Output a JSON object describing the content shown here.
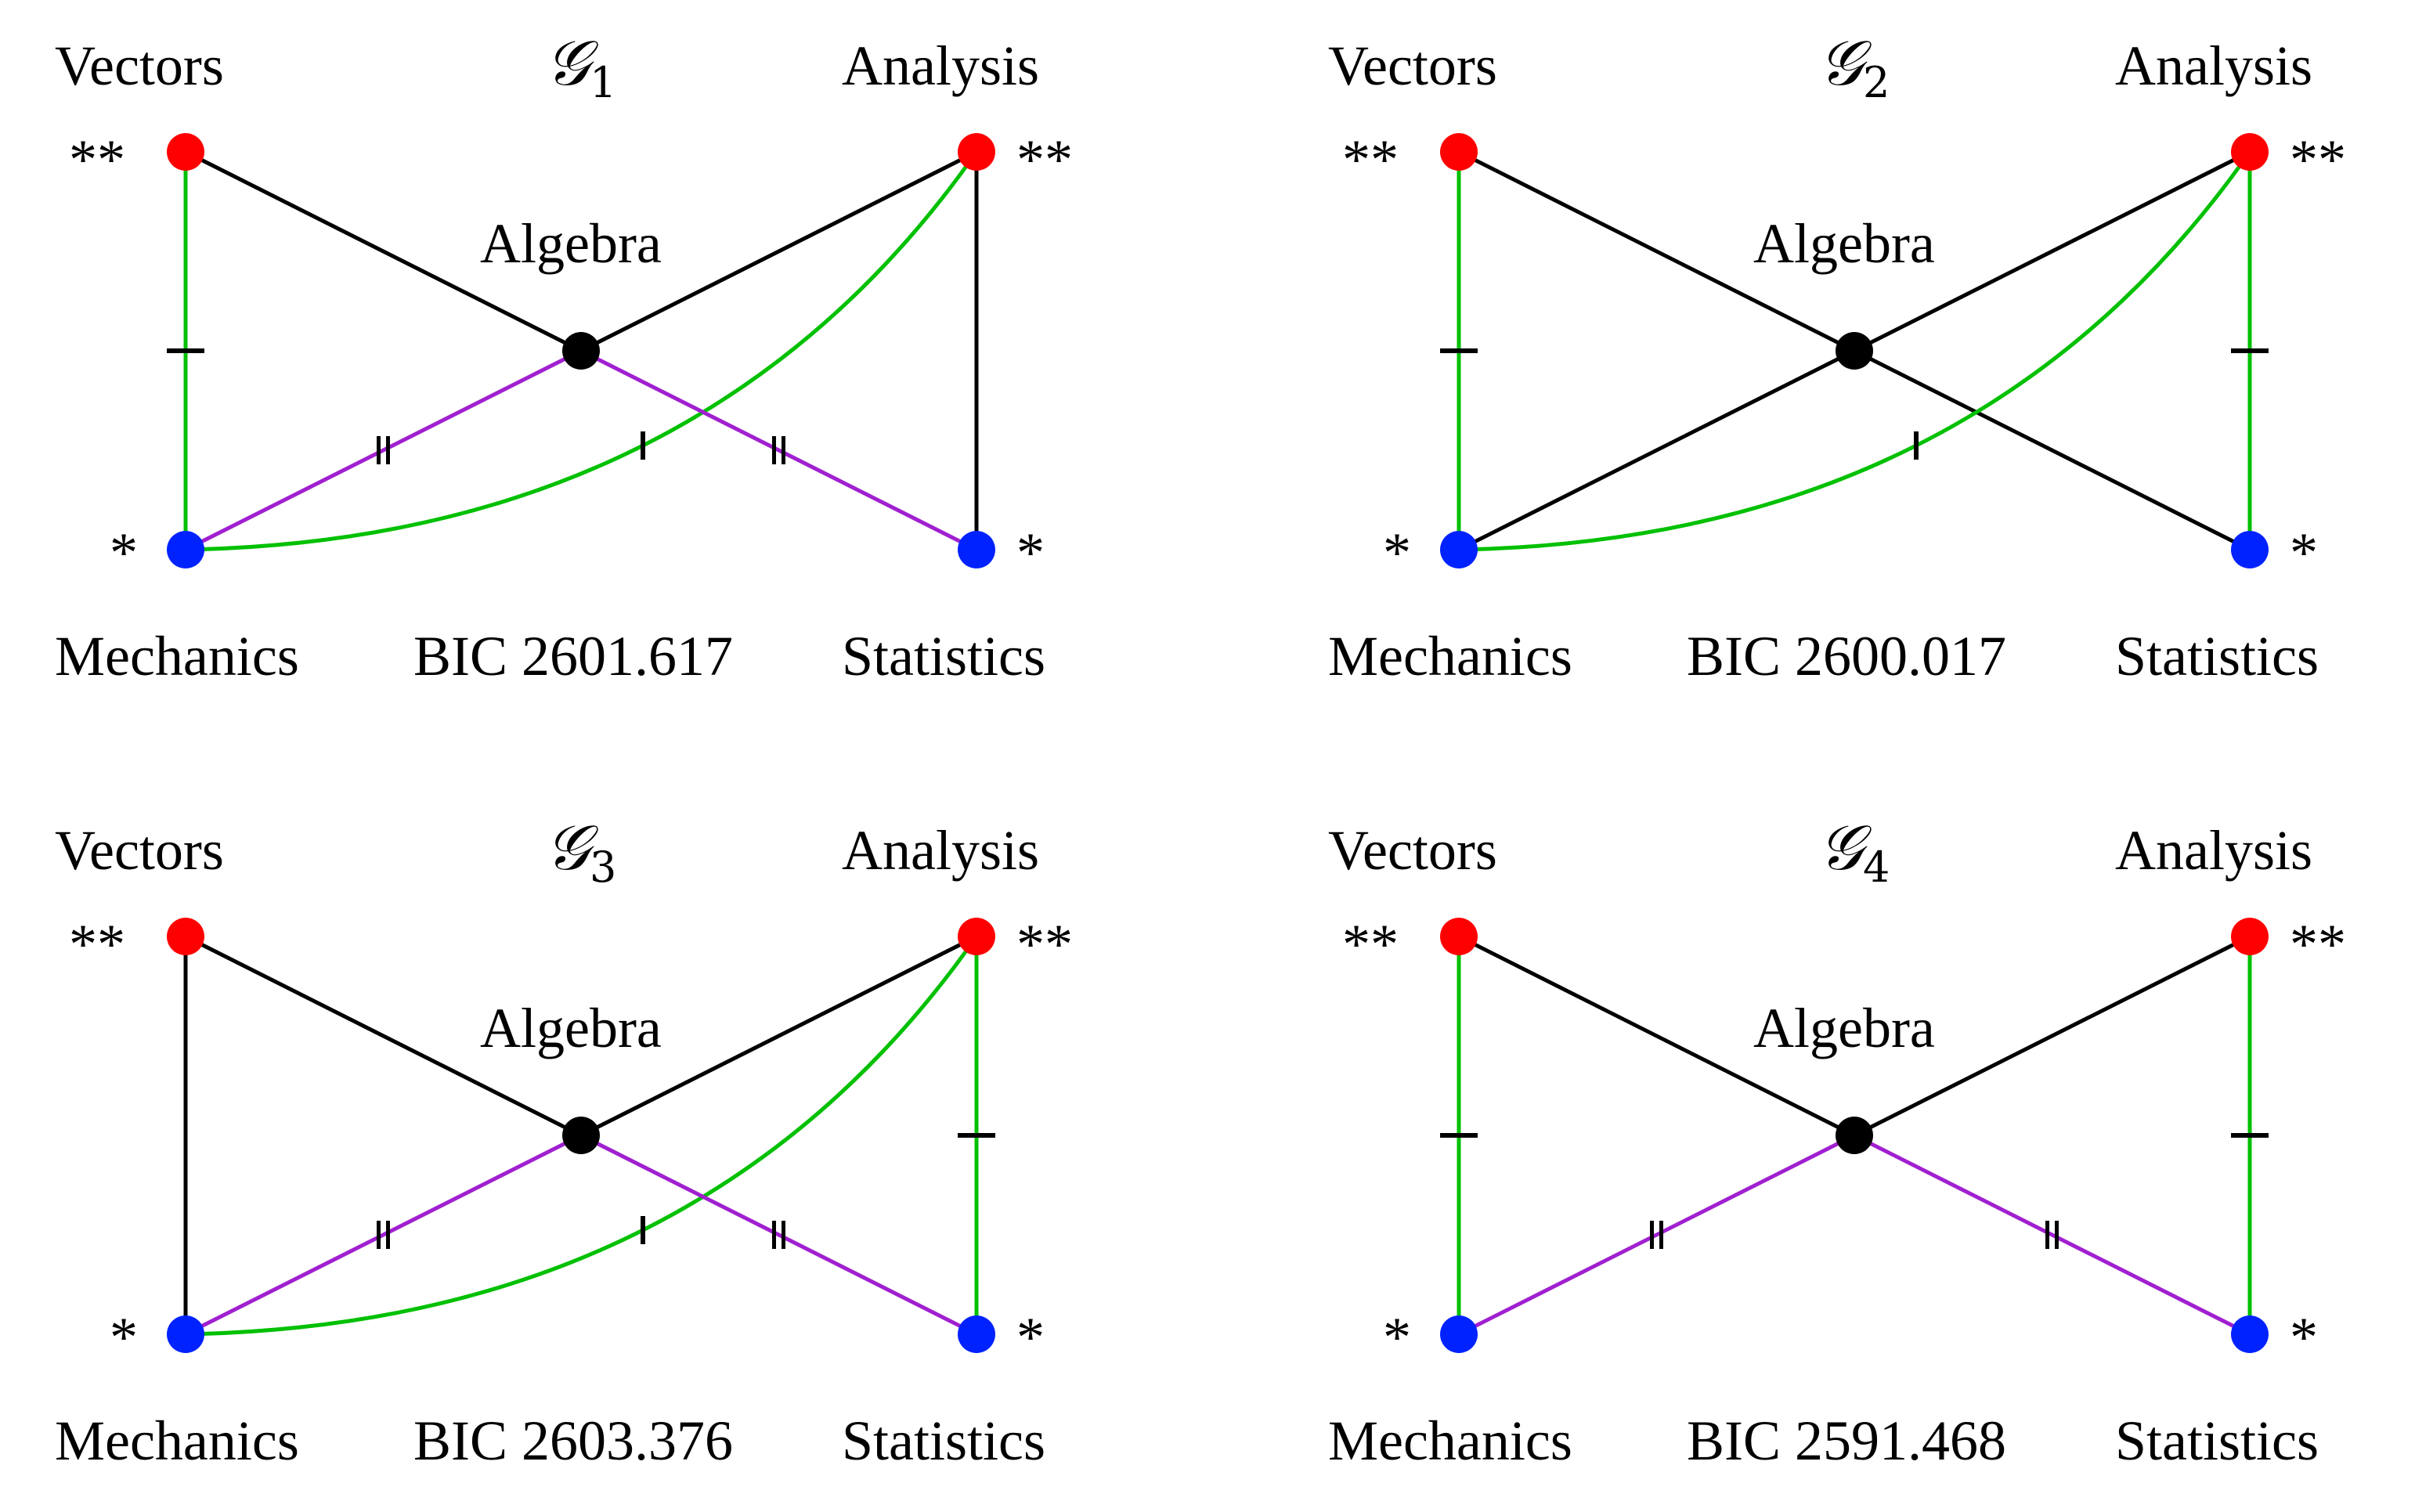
{
  "colors": {
    "red_node": "#ff0000",
    "blue_node": "#0022ff",
    "black_node": "#000000",
    "black_edge": "#000000",
    "green_edge": "#00c000",
    "purple_edge": "#a020d0"
  },
  "panels": [
    {
      "title_glyph": "𝒢",
      "title_sub": "1",
      "labels": {
        "vectors": "Vectors",
        "analysis": "Analysis",
        "algebra": "Algebra",
        "mechanics": "Mechanics",
        "statistics": "Statistics",
        "bic": "BIC 2601.617"
      },
      "stars": {
        "vectors": "**",
        "analysis": "**",
        "mechanics": "*",
        "statistics": "*"
      },
      "edges": [
        {
          "from": "vectors",
          "to": "algebra",
          "color": "black",
          "mark": "none",
          "curve": false
        },
        {
          "from": "analysis",
          "to": "algebra",
          "color": "black",
          "mark": "none",
          "curve": false
        },
        {
          "from": "analysis",
          "to": "statistics",
          "color": "black",
          "mark": "none",
          "curve": false
        },
        {
          "from": "vectors",
          "to": "mechanics",
          "color": "green",
          "mark": "perp",
          "curve": false
        },
        {
          "from": "mechanics",
          "to": "analysis",
          "color": "green",
          "mark": "single",
          "curve": true
        },
        {
          "from": "mechanics",
          "to": "algebra",
          "color": "purple",
          "mark": "double",
          "curve": false
        },
        {
          "from": "algebra",
          "to": "statistics",
          "color": "purple",
          "mark": "double",
          "curve": false
        }
      ]
    },
    {
      "title_glyph": "𝒢",
      "title_sub": "2",
      "labels": {
        "vectors": "Vectors",
        "analysis": "Analysis",
        "algebra": "Algebra",
        "mechanics": "Mechanics",
        "statistics": "Statistics",
        "bic": "BIC 2600.017"
      },
      "stars": {
        "vectors": "**",
        "analysis": "**",
        "mechanics": "*",
        "statistics": "*"
      },
      "edges": [
        {
          "from": "vectors",
          "to": "algebra",
          "color": "black",
          "mark": "none",
          "curve": false
        },
        {
          "from": "analysis",
          "to": "algebra",
          "color": "black",
          "mark": "none",
          "curve": false
        },
        {
          "from": "mechanics",
          "to": "algebra",
          "color": "black",
          "mark": "none",
          "curve": false
        },
        {
          "from": "algebra",
          "to": "statistics",
          "color": "black",
          "mark": "none",
          "curve": false
        },
        {
          "from": "vectors",
          "to": "mechanics",
          "color": "green",
          "mark": "perp",
          "curve": false
        },
        {
          "from": "analysis",
          "to": "statistics",
          "color": "green",
          "mark": "perp",
          "curve": false
        },
        {
          "from": "mechanics",
          "to": "analysis",
          "color": "green",
          "mark": "single",
          "curve": true
        }
      ]
    },
    {
      "title_glyph": "𝒢",
      "title_sub": "3",
      "labels": {
        "vectors": "Vectors",
        "analysis": "Analysis",
        "algebra": "Algebra",
        "mechanics": "Mechanics",
        "statistics": "Statistics",
        "bic": "BIC 2603.376"
      },
      "stars": {
        "vectors": "**",
        "analysis": "**",
        "mechanics": "*",
        "statistics": "*"
      },
      "edges": [
        {
          "from": "vectors",
          "to": "algebra",
          "color": "black",
          "mark": "none",
          "curve": false
        },
        {
          "from": "analysis",
          "to": "algebra",
          "color": "black",
          "mark": "none",
          "curve": false
        },
        {
          "from": "vectors",
          "to": "mechanics",
          "color": "black",
          "mark": "none",
          "curve": false
        },
        {
          "from": "analysis",
          "to": "statistics",
          "color": "green",
          "mark": "perp",
          "curve": false
        },
        {
          "from": "mechanics",
          "to": "analysis",
          "color": "green",
          "mark": "single",
          "curve": true
        },
        {
          "from": "mechanics",
          "to": "algebra",
          "color": "purple",
          "mark": "double",
          "curve": false
        },
        {
          "from": "algebra",
          "to": "statistics",
          "color": "purple",
          "mark": "double",
          "curve": false
        }
      ]
    },
    {
      "title_glyph": "𝒢",
      "title_sub": "4",
      "labels": {
        "vectors": "Vectors",
        "analysis": "Analysis",
        "algebra": "Algebra",
        "mechanics": "Mechanics",
        "statistics": "Statistics",
        "bic": "BIC 2591.468"
      },
      "stars": {
        "vectors": "**",
        "analysis": "**",
        "mechanics": "*",
        "statistics": "*"
      },
      "edges": [
        {
          "from": "vectors",
          "to": "algebra",
          "color": "black",
          "mark": "none",
          "curve": false
        },
        {
          "from": "analysis",
          "to": "algebra",
          "color": "black",
          "mark": "none",
          "curve": false
        },
        {
          "from": "vectors",
          "to": "mechanics",
          "color": "green",
          "mark": "perp",
          "curve": false
        },
        {
          "from": "analysis",
          "to": "statistics",
          "color": "green",
          "mark": "perp",
          "curve": false
        },
        {
          "from": "mechanics",
          "to": "algebra",
          "color": "purple",
          "mark": "double",
          "curve": false
        },
        {
          "from": "algebra",
          "to": "statistics",
          "color": "purple",
          "mark": "double",
          "curve": false
        }
      ]
    }
  ]
}
